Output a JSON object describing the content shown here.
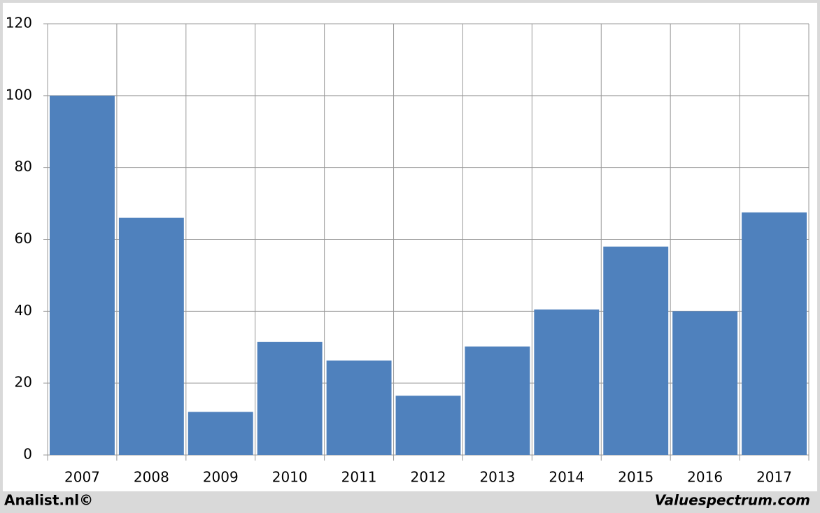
{
  "chart_data": {
    "type": "bar",
    "categories": [
      "2007",
      "2008",
      "2009",
      "2010",
      "2011",
      "2012",
      "2013",
      "2014",
      "2015",
      "2016",
      "2017"
    ],
    "values": [
      100,
      66,
      12,
      31.5,
      26.3,
      16.5,
      30.2,
      40.5,
      58,
      40,
      67.5
    ],
    "color": "#4f81bd",
    "ylim": [
      0,
      120
    ],
    "yticks": [
      0,
      20,
      40,
      60,
      80,
      100,
      120
    ],
    "grid": true
  },
  "footer": {
    "left": "Analist.nl©",
    "right": "Valuespectrum.com"
  }
}
